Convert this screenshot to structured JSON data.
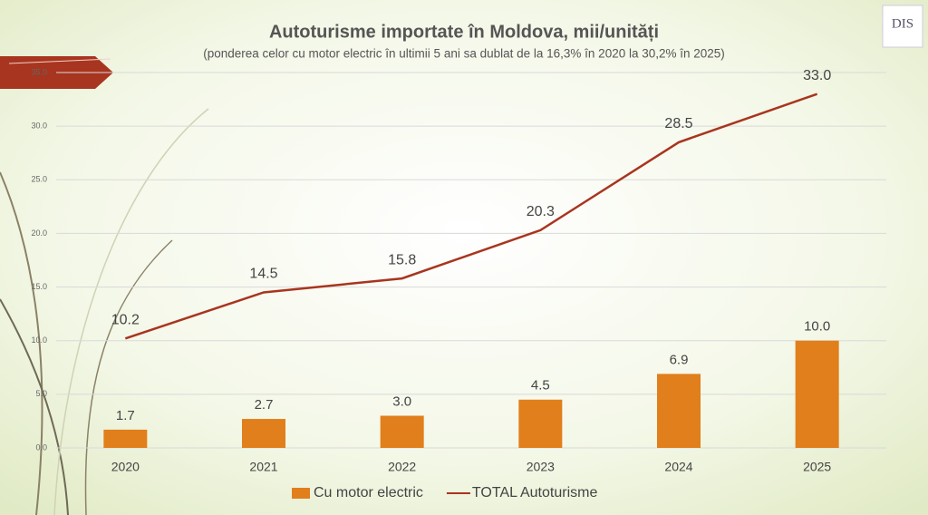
{
  "chart_data": {
    "type": "combo",
    "title": "Autoturisme importate în Moldova, mii/unități",
    "subtitle": "(ponderea celor cu motor electric în ultimii 5 ani sa dublat de la 16,3% în 2020 la 30,2% în 2025)",
    "logo": "DIS",
    "categories": [
      "2020",
      "2021",
      "2022",
      "2023",
      "2024",
      "2025"
    ],
    "series": [
      {
        "name": "Cu motor electric",
        "type": "bar",
        "color": "#e07f1c",
        "values": [
          1.7,
          2.7,
          3.0,
          4.5,
          6.9,
          10.0
        ],
        "value_labels": [
          "1.7",
          "2.7",
          "3.0",
          "4.5",
          "6.9",
          "10.0"
        ]
      },
      {
        "name": "TOTAL Autoturisme",
        "type": "line",
        "color": "#a8351f",
        "values": [
          10.2,
          14.5,
          15.8,
          20.3,
          28.5,
          33.0
        ],
        "value_labels": [
          "10.2",
          "14.5",
          "15.8",
          "20.3",
          "28.5",
          "33.0"
        ]
      }
    ],
    "ylim": [
      0,
      35
    ],
    "yticks": [
      {
        "value": 0,
        "label": "0.0"
      },
      {
        "value": 5,
        "label": "5.0"
      },
      {
        "value": 10,
        "label": "10.0"
      },
      {
        "value": 15,
        "label": "15.0"
      },
      {
        "value": 20,
        "label": "20.0"
      },
      {
        "value": 25,
        "label": "25.0"
      },
      {
        "value": 30,
        "label": "30.0"
      },
      {
        "value": 35,
        "label": "35.0"
      }
    ],
    "grid": true,
    "legend": "bottom"
  }
}
